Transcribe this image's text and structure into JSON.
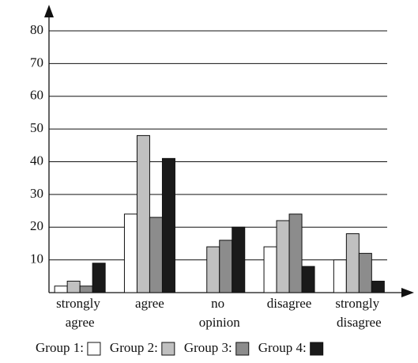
{
  "chart_data": {
    "type": "bar",
    "categories": [
      "strongly agree",
      "agree",
      "no opinion",
      "disagree",
      "strongly disagree"
    ],
    "series": [
      {
        "name": "Group 1:",
        "color": "#ffffff",
        "values": [
          2,
          24,
          0,
          14,
          10
        ]
      },
      {
        "name": "Group 2:",
        "color": "#c0c0c0",
        "values": [
          3.5,
          48,
          14,
          22,
          18
        ]
      },
      {
        "name": "Group 3:",
        "color": "#8c8c8c",
        "values": [
          2,
          23,
          16,
          24,
          12
        ]
      },
      {
        "name": "Group 4:",
        "color": "#1a1a1a",
        "values": [
          9,
          41,
          20,
          8,
          3.5
        ]
      }
    ],
    "ylim": [
      0,
      80
    ],
    "yticks": [
      10,
      20,
      30,
      40,
      50,
      60,
      70,
      80
    ],
    "grid": true
  }
}
